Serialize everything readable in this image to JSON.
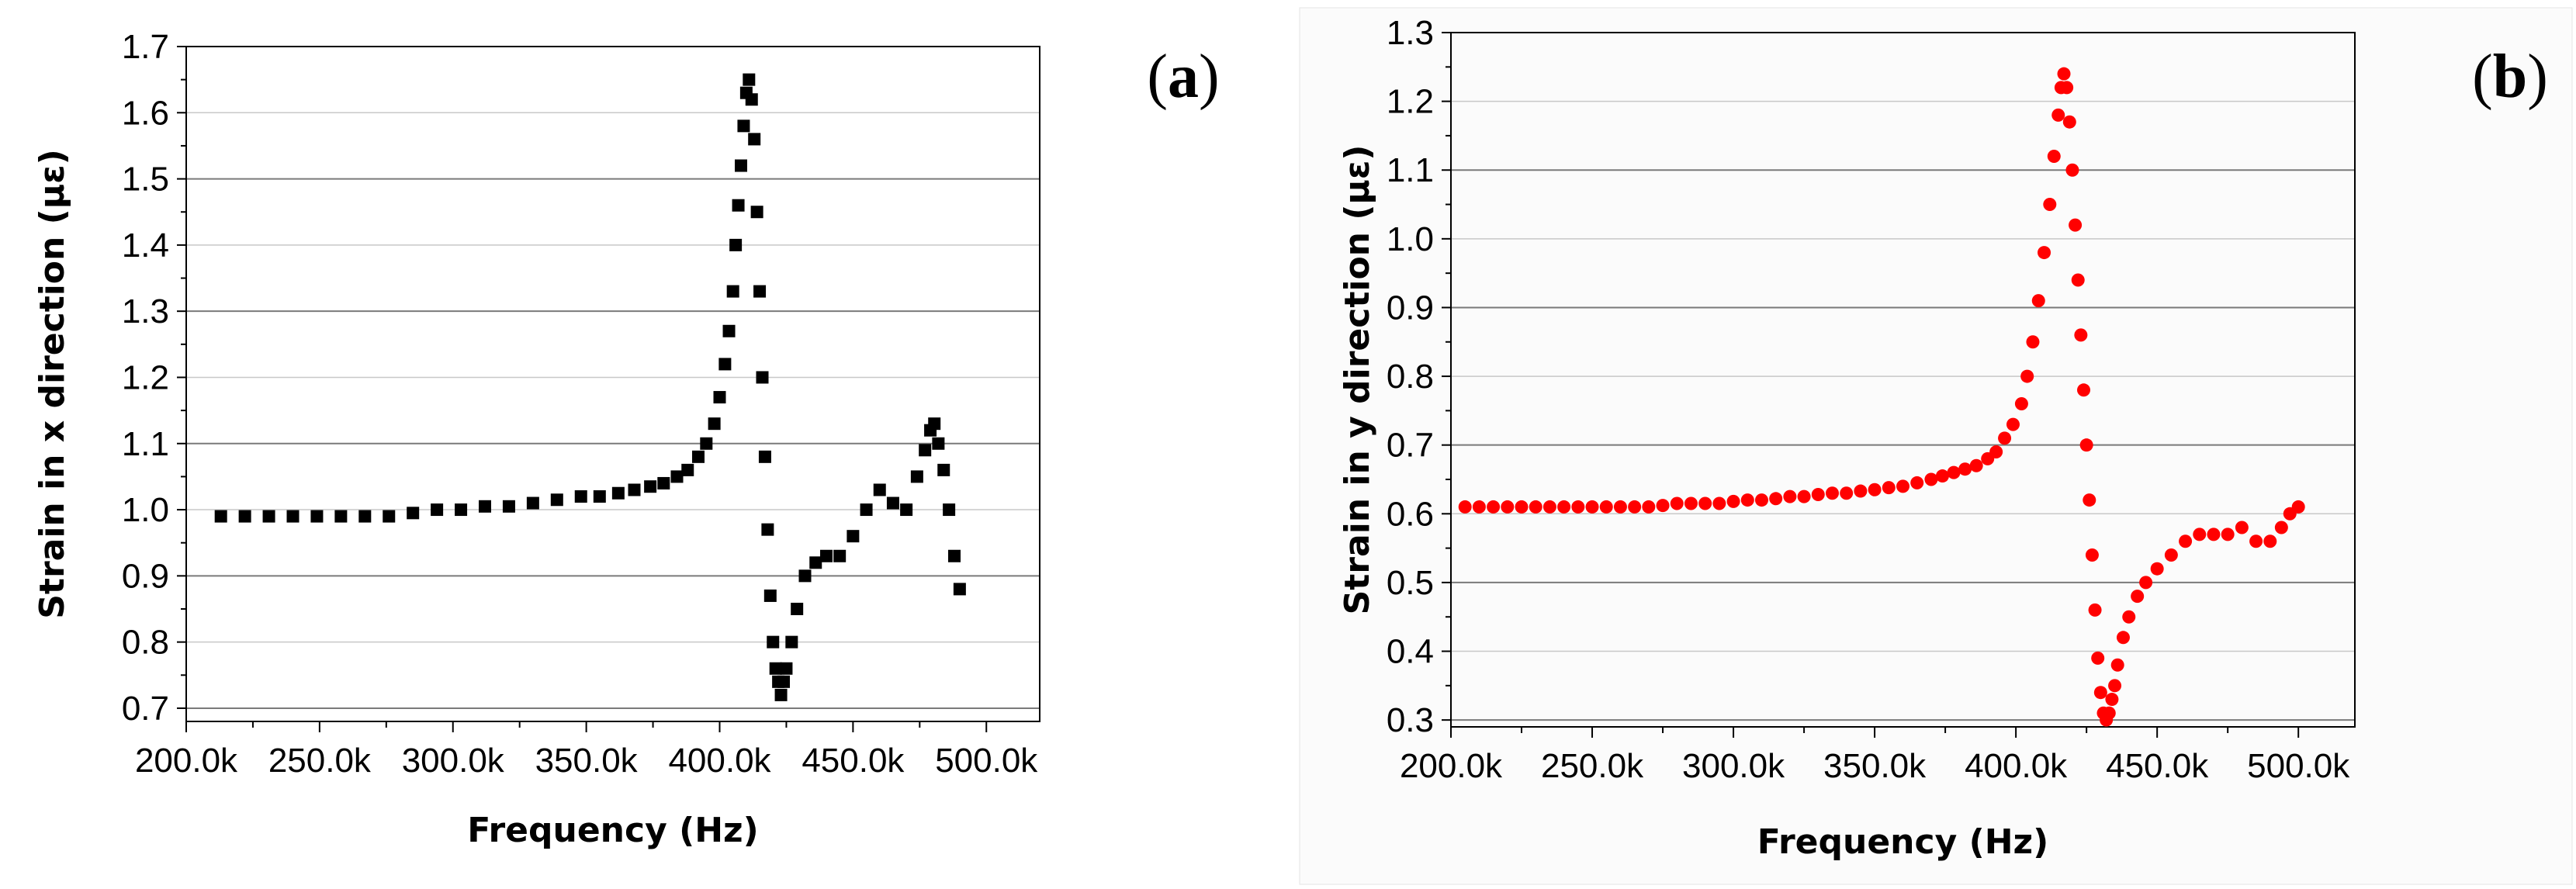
{
  "chart_data": [
    {
      "panel_label": "(a)",
      "panel_letter": "a",
      "type": "scatter",
      "xlabel": "Frequency (Hz)",
      "ylabel": "Strain in x direction (με)",
      "xlim": [
        200000,
        520000
      ],
      "ylim": [
        0.68,
        1.7
      ],
      "xticks": [
        200000,
        250000,
        300000,
        350000,
        400000,
        450000,
        500000
      ],
      "xtick_labels": [
        "200.0k",
        "250.0k",
        "300.0k",
        "350.0k",
        "400.0k",
        "450.0k",
        "500.0k"
      ],
      "yticks": [
        0.7,
        0.8,
        0.9,
        1.0,
        1.1,
        1.2,
        1.3,
        1.4,
        1.5,
        1.6,
        1.7
      ],
      "ytick_labels": [
        "0.7",
        "0.8",
        "0.9",
        "1.0",
        "1.1",
        "1.2",
        "1.3",
        "1.4",
        "1.5",
        "1.6",
        "1.7"
      ],
      "grid": true,
      "marker": "square",
      "color": "#000000",
      "series": [
        {
          "x": [
            213000,
            222000,
            231000,
            240000,
            249000,
            258000,
            267000,
            276000,
            285000,
            294000,
            303000,
            312000,
            321000,
            330000,
            339000,
            348000,
            355000,
            362000,
            368000,
            374000,
            379000,
            384000,
            388000,
            392000,
            395000,
            398000,
            400000,
            402000,
            403500,
            405000,
            406000,
            407000,
            408000,
            409000,
            410000,
            411000,
            412000,
            413000,
            414000,
            415000,
            416000,
            417000,
            418000,
            419000,
            420000,
            421000,
            422000,
            423000,
            424000,
            425000,
            427000,
            429000,
            432000,
            436000,
            440000,
            445000,
            450000,
            455000,
            460000,
            465000,
            470000,
            474000,
            477000,
            479000,
            480500,
            482000,
            484000,
            486000,
            488000,
            490000
          ],
          "y": [
            0.99,
            0.99,
            0.99,
            0.99,
            0.99,
            0.99,
            0.99,
            0.99,
            0.995,
            1.0,
            1.0,
            1.005,
            1.005,
            1.01,
            1.015,
            1.02,
            1.02,
            1.025,
            1.03,
            1.035,
            1.04,
            1.05,
            1.06,
            1.08,
            1.1,
            1.13,
            1.17,
            1.22,
            1.27,
            1.33,
            1.4,
            1.46,
            1.52,
            1.58,
            1.63,
            1.65,
            1.62,
            1.56,
            1.45,
            1.33,
            1.2,
            1.08,
            0.97,
            0.87,
            0.8,
            0.76,
            0.74,
            0.72,
            0.74,
            0.76,
            0.8,
            0.85,
            0.9,
            0.92,
            0.93,
            0.93,
            0.96,
            1.0,
            1.03,
            1.01,
            1.0,
            1.05,
            1.09,
            1.12,
            1.13,
            1.1,
            1.06,
            1.0,
            0.93,
            0.88
          ]
        }
      ]
    },
    {
      "panel_label": "(b)",
      "panel_letter": "b",
      "type": "scatter",
      "xlabel": "Frequency (Hz)",
      "ylabel": "Strain in y direction (με)",
      "xlim": [
        200000,
        520000
      ],
      "ylim": [
        0.29,
        1.3
      ],
      "xticks": [
        200000,
        250000,
        300000,
        350000,
        400000,
        450000,
        500000
      ],
      "xtick_labels": [
        "200.0k",
        "250.0k",
        "300.0k",
        "350.0k",
        "400.0k",
        "450.0k",
        "500.0k"
      ],
      "yticks": [
        0.3,
        0.4,
        0.5,
        0.6,
        0.7,
        0.8,
        0.9,
        1.0,
        1.1,
        1.2,
        1.3
      ],
      "ytick_labels": [
        "0.3",
        "0.4",
        "0.5",
        "0.6",
        "0.7",
        "0.8",
        "0.9",
        "1.0",
        "1.1",
        "1.2",
        "1.3"
      ],
      "grid": true,
      "marker": "circle",
      "color": "#ff0000",
      "series": [
        {
          "x": [
            205000,
            210000,
            215000,
            220000,
            225000,
            230000,
            235000,
            240000,
            245000,
            250000,
            255000,
            260000,
            265000,
            270000,
            275000,
            280000,
            285000,
            290000,
            295000,
            300000,
            305000,
            310000,
            315000,
            320000,
            325000,
            330000,
            335000,
            340000,
            345000,
            350000,
            355000,
            360000,
            365000,
            370000,
            374000,
            378000,
            382000,
            386000,
            390000,
            393000,
            396000,
            399000,
            402000,
            404000,
            406000,
            408000,
            410000,
            412000,
            413500,
            415000,
            416000,
            417000,
            418000,
            419000,
            420000,
            421000,
            422000,
            423000,
            424000,
            425000,
            426000,
            427000,
            428000,
            429000,
            430000,
            431000,
            432000,
            433000,
            434000,
            435000,
            436000,
            438000,
            440000,
            443000,
            446000,
            450000,
            455000,
            460000,
            465000,
            470000,
            475000,
            480000,
            485000,
            490000,
            494000,
            497000,
            500000
          ],
          "y": [
            0.61,
            0.61,
            0.61,
            0.61,
            0.61,
            0.61,
            0.61,
            0.61,
            0.61,
            0.61,
            0.61,
            0.61,
            0.61,
            0.61,
            0.612,
            0.615,
            0.615,
            0.615,
            0.615,
            0.618,
            0.62,
            0.62,
            0.622,
            0.625,
            0.625,
            0.628,
            0.63,
            0.63,
            0.633,
            0.635,
            0.638,
            0.64,
            0.645,
            0.65,
            0.655,
            0.66,
            0.665,
            0.67,
            0.68,
            0.69,
            0.71,
            0.73,
            0.76,
            0.8,
            0.85,
            0.91,
            0.98,
            1.05,
            1.12,
            1.18,
            1.22,
            1.24,
            1.22,
            1.17,
            1.1,
            1.02,
            0.94,
            0.86,
            0.78,
            0.7,
            0.62,
            0.54,
            0.46,
            0.39,
            0.34,
            0.31,
            0.3,
            0.31,
            0.33,
            0.35,
            0.38,
            0.42,
            0.45,
            0.48,
            0.5,
            0.52,
            0.54,
            0.56,
            0.57,
            0.57,
            0.57,
            0.58,
            0.56,
            0.56,
            0.58,
            0.6,
            0.61
          ]
        }
      ]
    }
  ]
}
